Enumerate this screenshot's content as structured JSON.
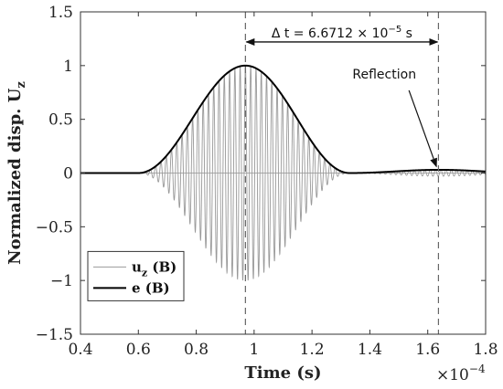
{
  "chart_data": {
    "type": "line",
    "xlabel": "Time (s)",
    "ylabel": "Normalized disp. U",
    "ylabel_sub": "z",
    "x_exponent_base": "×10",
    "x_exponent_power": "−4",
    "xlim": [
      0.4,
      1.8
    ],
    "ylim": [
      -1.5,
      1.5
    ],
    "x_ticks": [
      0.4,
      0.6,
      0.8,
      1.0,
      1.2,
      1.4,
      1.6,
      1.8
    ],
    "x_tick_labels": [
      "0.4",
      "0.6",
      "0.8",
      "1",
      "1.2",
      "1.4",
      "1.6",
      "1.8"
    ],
    "y_ticks": [
      -1.5,
      -1,
      -0.5,
      0,
      0.5,
      1,
      1.5
    ],
    "y_tick_labels": [
      "−1.5",
      "−1",
      "−0.5",
      "0",
      "0.5",
      "1",
      "1.5"
    ],
    "grid": false,
    "legend_position": "bottom-left",
    "legend": [
      {
        "text": "u",
        "sub": "z",
        "suffix": " (B)",
        "color": "#999999",
        "width": 1
      },
      {
        "text": "e",
        "sub": "",
        "suffix": " (B)",
        "color": "#000000",
        "width": 2
      }
    ],
    "pulse": {
      "onset": 0.6,
      "peak_time": 0.97,
      "end": 1.33,
      "peak_amplitude": 1.0,
      "carrier_periods_in_window": 40
    },
    "reflection_pulse": {
      "onset": 1.33,
      "peak_time": 1.64,
      "end": 1.95,
      "peak_amplitude": 0.03
    },
    "vlines": [
      0.97,
      1.637
    ],
    "delta_t": {
      "x_from": 0.97,
      "x_to": 1.637,
      "y": 1.22,
      "label_prefix": "Δ t = 6.6712 × 10",
      "label_power": "−5",
      "label_suffix": " s"
    },
    "reflection_annotation": {
      "text": "Reflection",
      "text_x": 1.45,
      "text_y": 0.88,
      "arrow_from_x": 1.535,
      "arrow_from_y": 0.77,
      "arrow_to_x": 1.63,
      "arrow_to_y": 0.06
    },
    "colors": {
      "signal": "#999999",
      "envelope": "#000000",
      "axis": "#333333",
      "dashed": "#666666"
    }
  }
}
